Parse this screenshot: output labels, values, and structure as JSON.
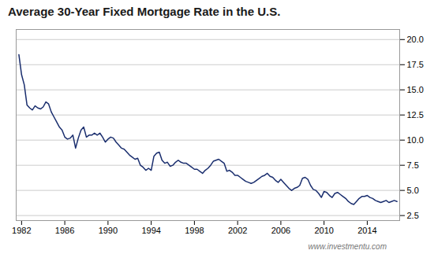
{
  "chart_data": {
    "type": "line",
    "title": "Average 30-Year Fixed Mortgage Rate in the U.S.",
    "annotations": [
      "www.investmentu.com"
    ],
    "color": "#1a2e6e",
    "grid": "y",
    "xlim": [
      1981.5,
      2017.0
    ],
    "ylim": [
      2.0,
      21.0
    ],
    "xticks": [
      1982,
      1986,
      1990,
      1994,
      1998,
      2002,
      2006,
      2010,
      2014
    ],
    "yticks": [
      2.5,
      {
        "value": 5.0,
        "label": "5.0"
      },
      7.5,
      {
        "value": 10.0,
        "label": "10.0"
      },
      12.5,
      {
        "value": 15.0,
        "label": "15.0"
      },
      17.5,
      {
        "value": 20.0,
        "label": "20.0"
      }
    ],
    "x": [
      1981.75,
      1982.0,
      1982.25,
      1982.5,
      1982.75,
      1983.0,
      1983.25,
      1983.5,
      1983.75,
      1984.0,
      1984.25,
      1984.5,
      1984.75,
      1985.0,
      1985.25,
      1985.5,
      1985.75,
      1986.0,
      1986.25,
      1986.5,
      1986.75,
      1987.0,
      1987.25,
      1987.5,
      1987.75,
      1988.0,
      1988.25,
      1988.5,
      1988.75,
      1989.0,
      1989.25,
      1989.5,
      1989.75,
      1990.0,
      1990.25,
      1990.5,
      1990.75,
      1991.0,
      1991.25,
      1991.5,
      1991.75,
      1992.0,
      1992.25,
      1992.5,
      1992.75,
      1993.0,
      1993.25,
      1993.5,
      1993.75,
      1994.0,
      1994.25,
      1994.5,
      1994.75,
      1995.0,
      1995.25,
      1995.5,
      1995.75,
      1996.0,
      1996.25,
      1996.5,
      1996.75,
      1997.0,
      1997.25,
      1997.5,
      1997.75,
      1998.0,
      1998.25,
      1998.5,
      1998.75,
      1999.0,
      1999.25,
      1999.5,
      1999.75,
      2000.0,
      2000.25,
      2000.5,
      2000.75,
      2001.0,
      2001.25,
      2001.5,
      2001.75,
      2002.0,
      2002.25,
      2002.5,
      2002.75,
      2003.0,
      2003.25,
      2003.5,
      2003.75,
      2004.0,
      2004.25,
      2004.5,
      2004.75,
      2005.0,
      2005.25,
      2005.5,
      2005.75,
      2006.0,
      2006.25,
      2006.5,
      2006.75,
      2007.0,
      2007.25,
      2007.5,
      2007.75,
      2008.0,
      2008.25,
      2008.5,
      2008.75,
      2009.0,
      2009.25,
      2009.5,
      2009.75,
      2010.0,
      2010.25,
      2010.5,
      2010.75,
      2011.0,
      2011.25,
      2011.5,
      2011.75,
      2012.0,
      2012.25,
      2012.5,
      2012.75,
      2013.0,
      2013.25,
      2013.5,
      2013.75,
      2014.0,
      2014.25,
      2014.5,
      2014.75,
      2015.0,
      2015.25,
      2015.5,
      2015.75,
      2016.0,
      2016.25,
      2016.5,
      2016.75
    ],
    "values": [
      18.5,
      16.5,
      15.5,
      13.5,
      13.2,
      13.0,
      13.4,
      13.2,
      13.1,
      13.3,
      13.8,
      13.6,
      12.8,
      12.3,
      11.8,
      11.3,
      11.0,
      10.3,
      10.1,
      10.2,
      10.5,
      9.2,
      10.2,
      11.0,
      11.3,
      10.3,
      10.5,
      10.5,
      10.7,
      10.5,
      10.7,
      10.3,
      9.8,
      10.1,
      10.3,
      10.2,
      9.8,
      9.5,
      9.2,
      9.1,
      8.8,
      8.5,
      8.3,
      8.1,
      8.2,
      7.5,
      7.3,
      7.0,
      7.2,
      7.0,
      8.4,
      8.7,
      8.8,
      8.0,
      7.7,
      7.8,
      7.4,
      7.5,
      7.8,
      8.0,
      7.8,
      7.7,
      7.7,
      7.5,
      7.3,
      7.1,
      7.1,
      6.9,
      6.7,
      7.0,
      7.2,
      7.5,
      7.9,
      8.0,
      8.1,
      7.9,
      7.7,
      6.9,
      7.0,
      6.8,
      6.5,
      6.5,
      6.3,
      6.1,
      5.9,
      5.8,
      5.7,
      5.8,
      6.0,
      6.2,
      6.4,
      6.5,
      6.7,
      6.4,
      6.3,
      6.0,
      5.8,
      6.1,
      5.8,
      5.5,
      5.2,
      5.0,
      5.2,
      5.3,
      5.5,
      6.2,
      6.3,
      6.1,
      5.5,
      5.1,
      5.0,
      4.7,
      4.3,
      4.9,
      4.8,
      4.5,
      4.3,
      4.7,
      4.8,
      4.6,
      4.4,
      4.2,
      3.9,
      3.7,
      3.6,
      3.9,
      4.2,
      4.4,
      4.4,
      4.5,
      4.3,
      4.2,
      4.0,
      3.9,
      3.8,
      3.9,
      4.0,
      3.8,
      3.9,
      4.0,
      3.9
    ]
  }
}
